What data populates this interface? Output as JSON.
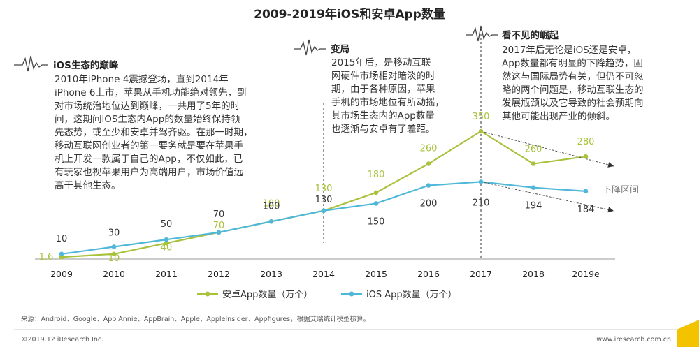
{
  "title": "2009-2019年iOS和安卓App数量",
  "annotations": [
    {
      "title": "iOS生态的巅峰",
      "lines": [
        "2010年iPhone 4震撼登场，直到2014年",
        "iPhone 6上市，苹果从手机功能绝对领先，到",
        "对市场统治地位达到巅峰，一共用了5年的时",
        "间，这期间iOS生态内App的数量始终保持领",
        "先态势，或至少和安卓并驾齐驱。在那一时期，",
        "移动互联网创业者的第一要务就是要在苹果手",
        "机上开发一款属于自己的App，不仅如此，已",
        "有玩家也视苹果用户为高端用户，市场价值远",
        "高于其他生态。"
      ]
    },
    {
      "title": "变局",
      "lines": [
        "2015年后，是移动互联",
        "网硬件市场相对暗淡的时",
        "期，由于各种原因，苹果",
        "手机的市场地位有所动摇，",
        "其市场生态内的App数量",
        "也逐渐与安卓有了差距。"
      ]
    },
    {
      "title": "看不见的崛起",
      "lines": [
        "2017年后无论是iOS还是安卓，",
        "App数量都有明显的下降趋势，固",
        "然这与国际局势有关，但仍不可忽",
        "略的两个问题是，移动互联生态的",
        "发展瓶颈以及它导致的社会预期向",
        "其他可能出现产业的倾斜。"
      ]
    }
  ],
  "chart_data": {
    "type": "line",
    "categories": [
      "2009",
      "2010",
      "2011",
      "2012",
      "2013",
      "2014",
      "2015",
      "2016",
      "2017",
      "2018",
      "2019e"
    ],
    "series": [
      {
        "name": "安卓App数量（万个）",
        "color": "#a8c23c",
        "values": [
          1.6,
          10,
          40,
          70,
          100,
          130,
          180,
          260,
          350,
          260,
          280
        ],
        "labels": [
          "1.6",
          "10",
          "40",
          "70",
          "100",
          "130",
          "180",
          "260",
          "350",
          "260",
          "280"
        ]
      },
      {
        "name": "iOS App数量（万个）",
        "color": "#4fb8d9",
        "values": [
          10,
          30,
          50,
          70,
          100,
          130,
          150,
          200,
          210,
          194,
          184
        ],
        "labels": [
          "10",
          "30",
          "50",
          "70",
          "100",
          "130",
          "150",
          "200",
          "210",
          "194",
          "184"
        ]
      }
    ],
    "xlabel": "",
    "ylabel": "",
    "ylim": [
      0,
      360
    ],
    "grid": false,
    "legend_position": "bottom",
    "trend_label": "下降区间"
  },
  "source": "来源：Android、Google、App Annie、AppBrain、Apple、AppleInsider、Appfigures，根据艾瑞统计模型核算。",
  "footer": {
    "left": "©2019.12 iResearch Inc.",
    "right": "www.iresearch.com.cn"
  }
}
